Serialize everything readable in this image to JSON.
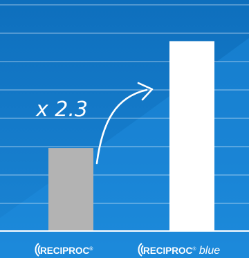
{
  "colors": {
    "background_top": "#0e6fbd",
    "background_bottom": "#1b86d6",
    "gridline": "#ffffff",
    "bar_reciproc": "#b3b3b3",
    "bar_reciproc_blue": "#ffffff",
    "text": "#ffffff"
  },
  "chart_data": {
    "type": "bar",
    "categories": [
      "RECIPROC",
      "RECIPROC blue"
    ],
    "category_suffixes": [
      "®",
      "® blue"
    ],
    "values": [
      1.0,
      2.3
    ],
    "ylim": [
      0,
      2.8
    ],
    "grid": true,
    "title": "",
    "xlabel": "",
    "ylabel": "",
    "annotation": "x 2.3"
  }
}
